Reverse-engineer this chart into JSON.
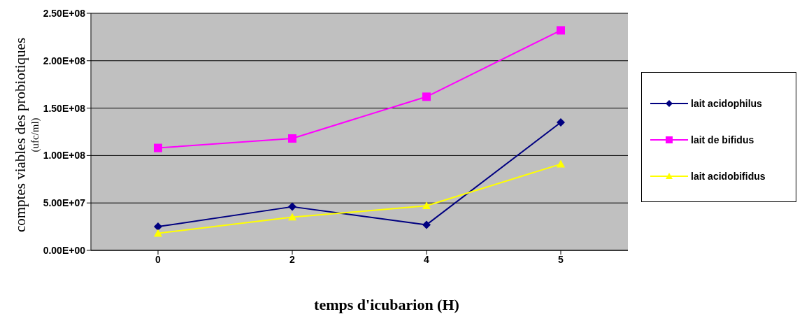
{
  "chart_data": {
    "type": "line",
    "xlabel": "temps d'icubarion (H)",
    "ylabel": "comptes  viables des probiotiques\n(ufc/ml)",
    "categories": [
      "0",
      "2",
      "4",
      "5"
    ],
    "series": [
      {
        "name": "lait acidophilus",
        "color": "#000080",
        "marker": "diamond",
        "values": [
          25000000,
          46000000,
          27000000,
          135000000
        ]
      },
      {
        "name": "lait de bifidus",
        "color": "#ff00ff",
        "marker": "square",
        "values": [
          108000000,
          118000000,
          162000000,
          232000000
        ]
      },
      {
        "name": "lait acidobifidus",
        "color": "#ffff00",
        "marker": "triangle",
        "values": [
          18000000,
          35000000,
          47000000,
          91000000
        ]
      }
    ],
    "ylim": [
      0,
      250000000
    ],
    "yticks": [
      {
        "value": 0,
        "label": "0.00E+00"
      },
      {
        "value": 50000000,
        "label": "5.00E+07"
      },
      {
        "value": 100000000,
        "label": "1.00E+08"
      },
      {
        "value": 150000000,
        "label": "1.50E+08"
      },
      {
        "value": 200000000,
        "label": "2.00E+08"
      },
      {
        "value": 250000000,
        "label": "2.50E+08"
      }
    ],
    "grid": "y",
    "legend": "right",
    "line_style": "solid"
  }
}
